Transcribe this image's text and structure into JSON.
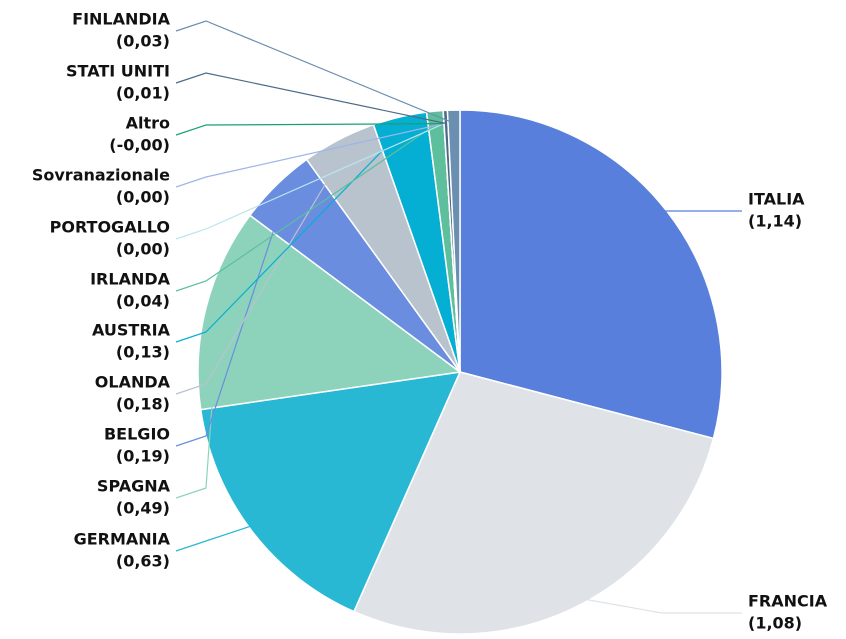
{
  "chart_data": {
    "type": "pie",
    "categories": [
      "ITALIA",
      "FRANCIA",
      "GERMANIA",
      "SPAGNA",
      "BELGIO",
      "OLANDA",
      "AUSTRIA",
      "IRLANDA",
      "PORTOGALLO",
      "Sovranazionale",
      "Altro",
      "STATI UNITI",
      "FINLANDIA"
    ],
    "values": [
      1.14,
      1.08,
      0.63,
      0.49,
      0.19,
      0.18,
      0.13,
      0.04,
      0,
      0,
      0,
      0.01,
      0.03
    ],
    "value_labels": [
      "(1,14)",
      "(1,08)",
      "(0,63)",
      "(0,49)",
      "(0,19)",
      "(0,18)",
      "(0,13)",
      "(0,04)",
      "(0,00)",
      "(0,00)",
      "(-0,00)",
      "(0,01)",
      "(0,03)"
    ],
    "colors": [
      "#587fdc",
      "#dfe3e8",
      "#29b8d4",
      "#8dd3bb",
      "#6a8de0",
      "#b8c3cd",
      "#05afd3",
      "#5dbf9c",
      "#b9e6f0",
      "#9fb4e8",
      "#1aa070",
      "#4d6b88",
      "#6a8fb0"
    ]
  }
}
